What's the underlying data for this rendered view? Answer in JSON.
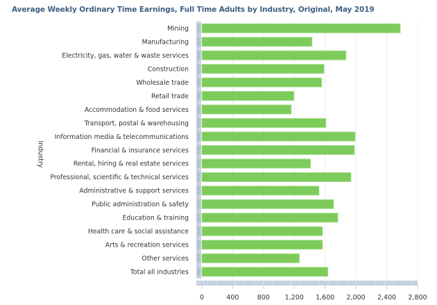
{
  "chart_data": {
    "type": "bar",
    "orientation": "horizontal",
    "title": "Average Weekly Ordinary Time Earnings, Full Time Adults by Industry, Original, May 2019",
    "xlabel": "",
    "ylabel": "Industry",
    "xlim": [
      0,
      2800
    ],
    "xticks": [
      0,
      400,
      800,
      1200,
      1600,
      2000,
      2400,
      2800
    ],
    "xtick_labels": [
      "0",
      "400",
      "800",
      "1,200",
      "1,600",
      "2,000",
      "2,400",
      "2,800"
    ],
    "grid": true,
    "bar_color": "#7dcb5a",
    "categories": [
      "Mining",
      "Manufacturing",
      "Electricity, gas, water & waste services",
      "Construction",
      "Wholesale trade",
      "Retail trade",
      "Accommodation & food services",
      "Transport, postal & warehousing",
      "Information media & telecommunications",
      "Financial & insurance services",
      "Rental, hiring & real estate services",
      "Professional, scientific & technical services",
      "Administrative & support services",
      "Public administration & safety",
      "Education & training",
      "Health care & social assistance",
      "Arts & recreation services",
      "Other services",
      "Total all industries"
    ],
    "values": [
      2575,
      1430,
      1870,
      1585,
      1555,
      1195,
      1160,
      1610,
      1990,
      1980,
      1410,
      1935,
      1520,
      1710,
      1765,
      1565,
      1565,
      1265,
      1635
    ]
  }
}
